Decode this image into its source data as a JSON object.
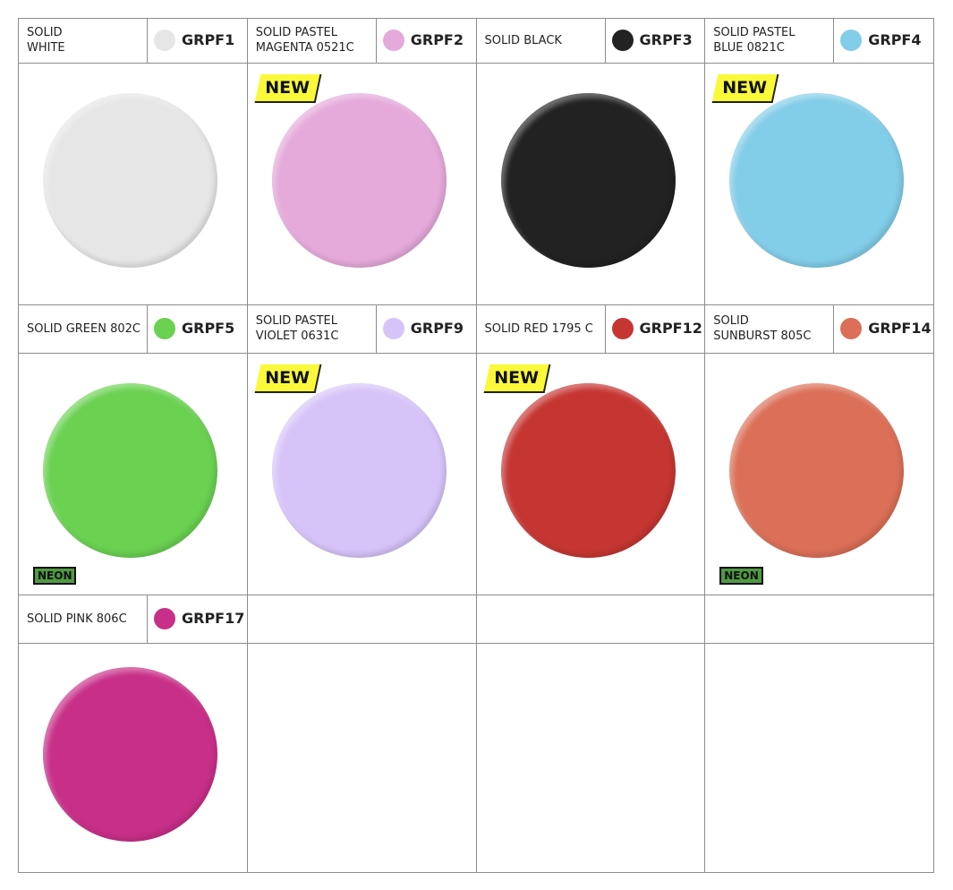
{
  "swatches": [
    {
      "name": [
        "SOLID",
        "WHITE"
      ],
      "code": "GRPF1",
      "color": "#e6e6e6"
    },
    {
      "name": [
        "SOLID PASTEL",
        "MAGENTA 0521C"
      ],
      "code": "GRPF2",
      "color": "#e5a9da",
      "badge": "NEW"
    },
    {
      "name": [
        "SOLID BLACK"
      ],
      "code": "GRPF3",
      "color": "#222222"
    },
    {
      "name": [
        "SOLID PASTEL",
        "BLUE 0821C"
      ],
      "code": "GRPF4",
      "color": "#82cde8",
      "badge": "NEW"
    },
    {
      "name": [
        "SOLID GREEN 802C"
      ],
      "code": "GRPF5",
      "color": "#6ad151",
      "tag": "NEON"
    },
    {
      "name": [
        "SOLID PASTEL",
        "VIOLET 0631C"
      ],
      "code": "GRPF9",
      "color": "#d6c4f8",
      "badge": "NEW"
    },
    {
      "name": [
        "SOLID RED 1795 C"
      ],
      "code": "GRPF12",
      "color": "#c53632",
      "badge": "NEW"
    },
    {
      "name": [
        "SOLID",
        "SUNBURST 805C"
      ],
      "code": "GRPF14",
      "color": "#db6f57",
      "tag": "NEON"
    },
    {
      "name": [
        "SOLID PINK 806C"
      ],
      "code": "GRPF17",
      "color": "#c82f88"
    }
  ]
}
